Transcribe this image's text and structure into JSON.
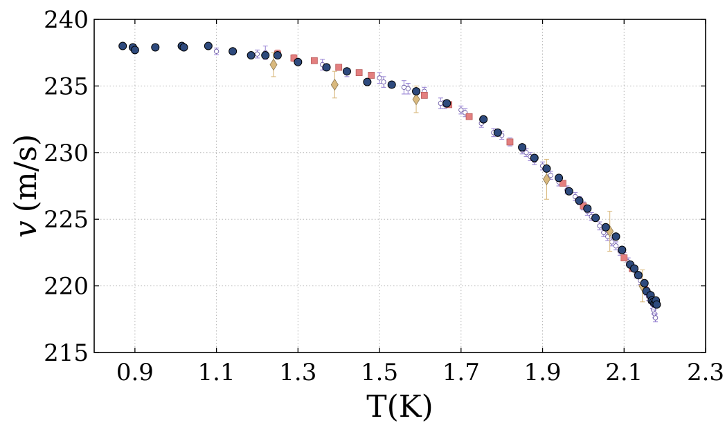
{
  "chart_data": {
    "type": "scatter",
    "title": "",
    "xlabel": "T(K)",
    "ylabel": "v (m/s)",
    "ylabel_var": "v",
    "ylabel_unit": "(m/s)",
    "xlim": [
      0.8,
      2.3
    ],
    "ylim": [
      215,
      240
    ],
    "xticks": [
      0.9,
      1.1,
      1.3,
      1.5,
      1.7,
      1.9,
      2.1,
      2.3
    ],
    "xtick_labels": [
      "0.9",
      "1.1",
      "1.3",
      "1.5",
      "1.7",
      "1.9",
      "2.1",
      "2.3"
    ],
    "yticks": [
      215,
      220,
      225,
      230,
      235,
      240
    ],
    "ytick_labels": [
      "215",
      "220",
      "225",
      "230",
      "235",
      "240"
    ],
    "grid": true,
    "series": [
      {
        "marker": "circle-open",
        "color": "#9b87d6",
        "errorbars": true,
        "points": [
          [
            1.1,
            237.6,
            0.25
          ],
          [
            1.2,
            237.4,
            0.3
          ],
          [
            1.22,
            237.5,
            0.5
          ],
          [
            1.36,
            236.6,
            0.4
          ],
          [
            1.42,
            236.0,
            0.3
          ],
          [
            1.5,
            235.6,
            0.4
          ],
          [
            1.51,
            235.3,
            0.4
          ],
          [
            1.56,
            234.9,
            0.5
          ],
          [
            1.57,
            234.8,
            0.4
          ],
          [
            1.61,
            234.6,
            0.3
          ],
          [
            1.65,
            233.7,
            0.4
          ],
          [
            1.66,
            233.6,
            0.3
          ],
          [
            1.7,
            233.2,
            0.3
          ],
          [
            1.71,
            233.0,
            0.3
          ],
          [
            1.75,
            232.2,
            0.3
          ],
          [
            1.78,
            231.5,
            0.3
          ],
          [
            1.8,
            231.3,
            0.3
          ],
          [
            1.82,
            230.8,
            0.3
          ],
          [
            1.85,
            230.2,
            0.3
          ],
          [
            1.86,
            230.0,
            0.3
          ],
          [
            1.87,
            229.7,
            0.3
          ],
          [
            1.88,
            229.4,
            0.3
          ],
          [
            1.9,
            229.0,
            0.3
          ],
          [
            1.92,
            228.3,
            0.3
          ],
          [
            1.94,
            227.8,
            0.3
          ],
          [
            1.96,
            227.2,
            0.3
          ],
          [
            1.98,
            226.7,
            0.3
          ],
          [
            1.99,
            226.4,
            0.3
          ],
          [
            2.0,
            226.0,
            0.3
          ],
          [
            2.01,
            225.6,
            0.3
          ],
          [
            2.02,
            225.2,
            0.3
          ],
          [
            2.04,
            224.5,
            0.3
          ],
          [
            2.05,
            224.0,
            0.3
          ],
          [
            2.06,
            223.7,
            0.3
          ],
          [
            2.07,
            223.3,
            0.3
          ],
          [
            2.08,
            223.0,
            0.3
          ],
          [
            2.09,
            222.6,
            0.3
          ],
          [
            2.1,
            222.2,
            0.3
          ],
          [
            2.11,
            221.8,
            0.3
          ],
          [
            2.12,
            221.4,
            0.3
          ],
          [
            2.13,
            220.9,
            0.3
          ],
          [
            2.14,
            220.4,
            0.3
          ],
          [
            2.15,
            219.9,
            0.3
          ],
          [
            2.155,
            219.6,
            0.3
          ],
          [
            2.16,
            219.2,
            0.3
          ],
          [
            2.165,
            219.0,
            0.3
          ],
          [
            2.17,
            218.6,
            0.3
          ],
          [
            2.172,
            218.2,
            0.3
          ],
          [
            2.175,
            217.9,
            0.3
          ],
          [
            2.177,
            217.6,
            0.3
          ]
        ]
      },
      {
        "marker": "square",
        "color": "#e37f7f",
        "errorbars": true,
        "points": [
          [
            1.25,
            237.4,
            0.3
          ],
          [
            1.29,
            237.1,
            0.25
          ],
          [
            1.34,
            236.9,
            0.2
          ],
          [
            1.4,
            236.4,
            0.2
          ],
          [
            1.45,
            236.0,
            0.2
          ],
          [
            1.48,
            235.8,
            0.2
          ],
          [
            1.61,
            234.3,
            0.2
          ],
          [
            1.67,
            233.6,
            0.2
          ],
          [
            1.72,
            232.7,
            0.2
          ],
          [
            1.82,
            230.8,
            0.2
          ],
          [
            1.95,
            227.7,
            0.2
          ],
          [
            2.0,
            226.0,
            0.2
          ],
          [
            2.1,
            222.1,
            0.2
          ],
          [
            2.12,
            221.3,
            0.2
          ],
          [
            2.15,
            220.0,
            0.2
          ]
        ]
      },
      {
        "marker": "diamond",
        "color": "#d9b97e",
        "errorbars": true,
        "points": [
          [
            1.24,
            236.6,
            0.9
          ],
          [
            1.39,
            235.1,
            1.0
          ],
          [
            1.59,
            234.0,
            1.0
          ],
          [
            1.91,
            228.0,
            1.5
          ],
          [
            2.065,
            224.1,
            1.5
          ],
          [
            2.145,
            220.0,
            1.2
          ]
        ]
      },
      {
        "marker": "circle-filled",
        "color": "#2e4a7d",
        "errorbars": false,
        "points": [
          [
            0.87,
            238.0
          ],
          [
            0.895,
            237.9
          ],
          [
            0.9,
            237.7
          ],
          [
            0.95,
            237.9
          ],
          [
            1.015,
            238.0
          ],
          [
            1.02,
            237.9
          ],
          [
            1.08,
            238.0
          ],
          [
            1.14,
            237.6
          ],
          [
            1.185,
            237.3
          ],
          [
            1.22,
            237.3
          ],
          [
            1.25,
            237.3
          ],
          [
            1.3,
            236.8
          ],
          [
            1.37,
            236.4
          ],
          [
            1.42,
            236.1
          ],
          [
            1.47,
            235.3
          ],
          [
            1.53,
            235.1
          ],
          [
            1.59,
            234.6
          ],
          [
            1.665,
            233.7
          ],
          [
            1.755,
            232.5
          ],
          [
            1.79,
            231.5
          ],
          [
            1.85,
            230.4
          ],
          [
            1.88,
            229.6
          ],
          [
            1.91,
            228.8
          ],
          [
            1.94,
            228.1
          ],
          [
            1.965,
            227.1
          ],
          [
            1.99,
            226.4
          ],
          [
            2.01,
            225.8
          ],
          [
            2.03,
            225.1
          ],
          [
            2.055,
            224.4
          ],
          [
            2.08,
            223.7
          ],
          [
            2.095,
            222.7
          ],
          [
            2.115,
            221.6
          ],
          [
            2.125,
            221.3
          ],
          [
            2.135,
            220.8
          ],
          [
            2.15,
            220.2
          ],
          [
            2.155,
            219.6
          ],
          [
            2.165,
            219.3
          ],
          [
            2.168,
            218.9
          ],
          [
            2.172,
            218.8
          ],
          [
            2.175,
            218.7
          ],
          [
            2.178,
            218.9
          ],
          [
            2.18,
            218.6
          ]
        ]
      }
    ]
  }
}
